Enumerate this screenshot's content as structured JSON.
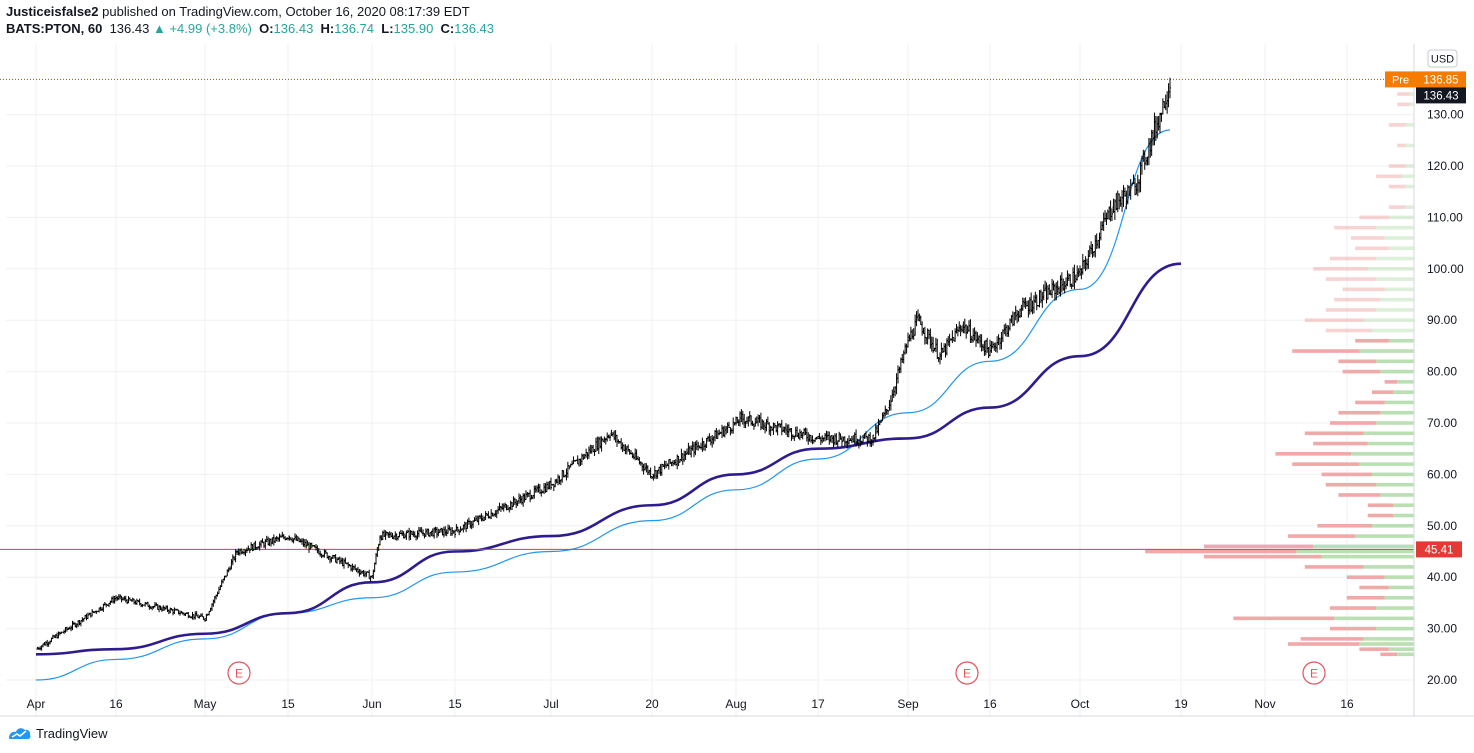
{
  "header": {
    "author": "Justiceisfalse2",
    "published_text": "published on TradingView.com, October 16, 2020 08:17:39 EDT",
    "symbol": "BATS:PTON, 60",
    "last": "136.43",
    "change": "+4.99 (+3.8%)",
    "open_label": "O:",
    "open": "136.43",
    "high_label": "H:",
    "high": "136.74",
    "low_label": "L:",
    "low": "135.90",
    "close_label": "C:",
    "close": "136.43"
  },
  "footer": {
    "brand": "TradingView"
  },
  "colors": {
    "candle": "#000000",
    "ma_long": "#2e1c8f",
    "fit_curve": "#2196f3",
    "hline": "#e53935",
    "vp_up": "#b9dfb3",
    "vp_down": "#f0a8a8",
    "pre_badge": "#f57c00",
    "grid": "#eef0f3"
  },
  "chart_data": {
    "type": "candlestick",
    "currency": "USD",
    "y_range": [
      18,
      138
    ],
    "y_ticks": [
      20,
      30,
      40,
      50,
      60,
      70,
      80,
      90,
      100,
      110,
      120,
      130
    ],
    "x_ticks": [
      "Apr",
      "16",
      "May",
      "15",
      "Jun",
      "15",
      "Jul",
      "20",
      "Aug",
      "17",
      "Sep",
      "16",
      "Oct",
      "19",
      "Nov",
      "16"
    ],
    "price_anchors": [
      [
        "Apr",
        26
      ],
      [
        "16",
        36
      ],
      [
        "May",
        32
      ],
      [
        "May 7",
        45
      ],
      [
        "15",
        48
      ],
      [
        "Jun",
        40
      ],
      [
        "Jun 2",
        48
      ],
      [
        "15",
        49
      ],
      [
        "Jul",
        58
      ],
      [
        "Jul 14",
        68
      ],
      [
        "20",
        60
      ],
      [
        "Aug",
        70
      ],
      [
        "Aug 5",
        71
      ],
      [
        "17",
        67
      ],
      [
        "Aug 25",
        67
      ],
      [
        "Aug 27",
        73
      ],
      [
        "Sep",
        86
      ],
      [
        "Sep 3",
        90
      ],
      [
        "Sep 9",
        83
      ],
      [
        "Sep 14",
        89
      ],
      [
        "16",
        84
      ],
      [
        "Sep 22",
        92
      ],
      [
        "Oct",
        99
      ],
      [
        "Oct 8",
        112
      ],
      [
        "Oct 12",
        116
      ],
      [
        "Oct 15",
        130
      ],
      [
        "Oct 16",
        136.43
      ]
    ],
    "ma_long": [
      [
        "Apr",
        25
      ],
      [
        "16",
        26
      ],
      [
        "May",
        29
      ],
      [
        "15",
        33
      ],
      [
        "Jun",
        39
      ],
      [
        "15",
        45
      ],
      [
        "Jul",
        48
      ],
      [
        "20",
        54
      ],
      [
        "Aug",
        60
      ],
      [
        "17",
        65
      ],
      [
        "Sep",
        67
      ],
      [
        "16",
        73
      ],
      [
        "Oct",
        83
      ],
      [
        "19",
        101
      ]
    ],
    "fit_curve": [
      [
        "Apr",
        20
      ],
      [
        "16",
        24
      ],
      [
        "May",
        28
      ],
      [
        "15",
        33
      ],
      [
        "Jun",
        36
      ],
      [
        "15",
        41
      ],
      [
        "Jul",
        45
      ],
      [
        "20",
        51
      ],
      [
        "Aug",
        57
      ],
      [
        "17",
        63
      ],
      [
        "Sep",
        72
      ],
      [
        "16",
        82
      ],
      [
        "Oct",
        96
      ],
      [
        "Oct 16",
        127
      ]
    ],
    "horizontal_line": 45.41,
    "last_price": "136.43",
    "premarket": {
      "label": "Pre",
      "value": "136.85"
    },
    "hline_label": "45.41",
    "earnings_markers": [
      {
        "date": "May 6",
        "label": "E"
      },
      {
        "date": "Sep 10",
        "label": "E"
      },
      {
        "date": "Nov 5",
        "label": "E"
      }
    ],
    "volume_profile": [
      {
        "price": 134,
        "up": 1,
        "down": 3
      },
      {
        "price": 132,
        "up": 1,
        "down": 3
      },
      {
        "price": 128,
        "up": 2,
        "down": 4
      },
      {
        "price": 124,
        "up": 2,
        "down": 2
      },
      {
        "price": 120,
        "up": 2,
        "down": 4
      },
      {
        "price": 118,
        "up": 3,
        "down": 6
      },
      {
        "price": 116,
        "up": 2,
        "down": 4
      },
      {
        "price": 112,
        "up": 2,
        "down": 4
      },
      {
        "price": 110,
        "up": 6,
        "down": 7
      },
      {
        "price": 108,
        "up": 9,
        "down": 10
      },
      {
        "price": 106,
        "up": 7,
        "down": 8
      },
      {
        "price": 104,
        "up": 6,
        "down": 8
      },
      {
        "price": 102,
        "up": 9,
        "down": 11
      },
      {
        "price": 100,
        "up": 11,
        "down": 13
      },
      {
        "price": 98,
        "up": 9,
        "down": 12
      },
      {
        "price": 96,
        "up": 7,
        "down": 10
      },
      {
        "price": 94,
        "up": 8,
        "down": 11
      },
      {
        "price": 92,
        "up": 9,
        "down": 12
      },
      {
        "price": 90,
        "up": 12,
        "down": 14
      },
      {
        "price": 88,
        "up": 10,
        "down": 11
      },
      {
        "price": 86,
        "up": 6,
        "down": 8
      },
      {
        "price": 84,
        "up": 13,
        "down": 16
      },
      {
        "price": 82,
        "up": 9,
        "down": 9
      },
      {
        "price": 80,
        "up": 8,
        "down": 9
      },
      {
        "price": 78,
        "up": 4,
        "down": 3
      },
      {
        "price": 76,
        "up": 5,
        "down": 5
      },
      {
        "price": 74,
        "up": 7,
        "down": 7
      },
      {
        "price": 72,
        "up": 8,
        "down": 10
      },
      {
        "price": 70,
        "up": 9,
        "down": 11
      },
      {
        "price": 68,
        "up": 12,
        "down": 14
      },
      {
        "price": 66,
        "up": 11,
        "down": 13
      },
      {
        "price": 64,
        "up": 15,
        "down": 18
      },
      {
        "price": 62,
        "up": 13,
        "down": 16
      },
      {
        "price": 60,
        "up": 10,
        "down": 12
      },
      {
        "price": 58,
        "up": 9,
        "down": 12
      },
      {
        "price": 56,
        "up": 8,
        "down": 10
      },
      {
        "price": 54,
        "up": 5,
        "down": 6
      },
      {
        "price": 52,
        "up": 5,
        "down": 6
      },
      {
        "price": 50,
        "up": 10,
        "down": 13
      },
      {
        "price": 48,
        "up": 14,
        "down": 16
      },
      {
        "price": 46,
        "up": 24,
        "down": 26
      },
      {
        "price": 45,
        "up": 28,
        "down": 36
      },
      {
        "price": 44,
        "up": 22,
        "down": 28
      },
      {
        "price": 42,
        "up": 12,
        "down": 14
      },
      {
        "price": 40,
        "up": 7,
        "down": 9
      },
      {
        "price": 38,
        "up": 6,
        "down": 7
      },
      {
        "price": 36,
        "up": 7,
        "down": 9
      },
      {
        "price": 34,
        "up": 9,
        "down": 11
      },
      {
        "price": 32,
        "up": 19,
        "down": 24
      },
      {
        "price": 30,
        "up": 9,
        "down": 11
      },
      {
        "price": 28,
        "up": 12,
        "down": 15
      },
      {
        "price": 27,
        "up": 13,
        "down": 17
      },
      {
        "price": 26,
        "up": 6,
        "down": 7
      },
      {
        "price": 25,
        "up": 4,
        "down": 4
      }
    ],
    "grid": true
  }
}
